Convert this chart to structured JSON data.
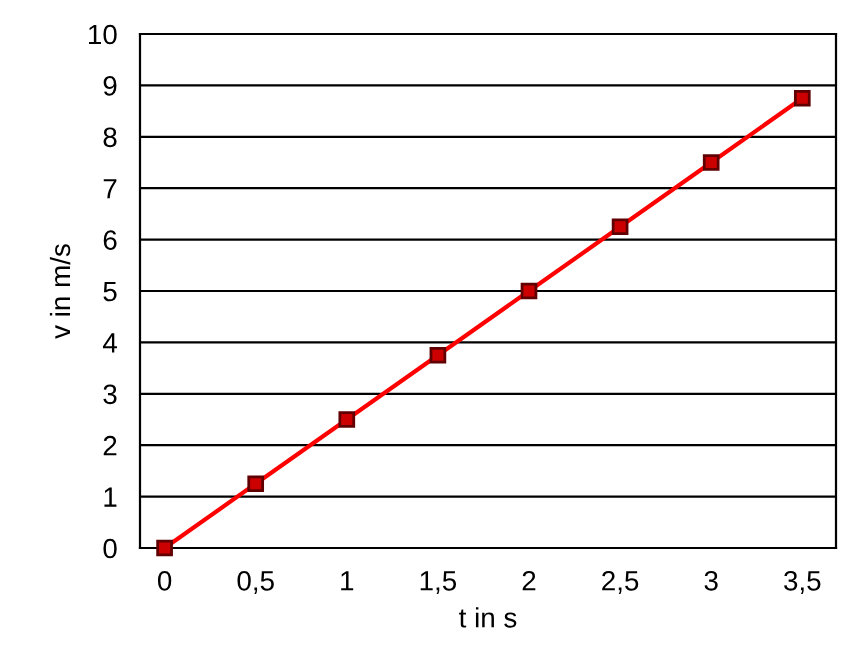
{
  "chart_data": {
    "type": "line",
    "xlabel": "t in s",
    "ylabel": "v in m/s",
    "categories": [
      "0",
      "0,5",
      "1",
      "1,5",
      "2",
      "2,5",
      "3",
      "3,5"
    ],
    "series": [
      {
        "color": "#ff0000",
        "values": [
          0,
          1.25,
          2.5,
          3.75,
          5,
          6.25,
          7.5,
          8.75
        ]
      }
    ],
    "ylim": [
      0,
      10
    ],
    "yticks": [
      0,
      1,
      2,
      3,
      4,
      5,
      6,
      7,
      8,
      9,
      10
    ],
    "grid": "y",
    "marker": "square",
    "line_style": "solid"
  }
}
